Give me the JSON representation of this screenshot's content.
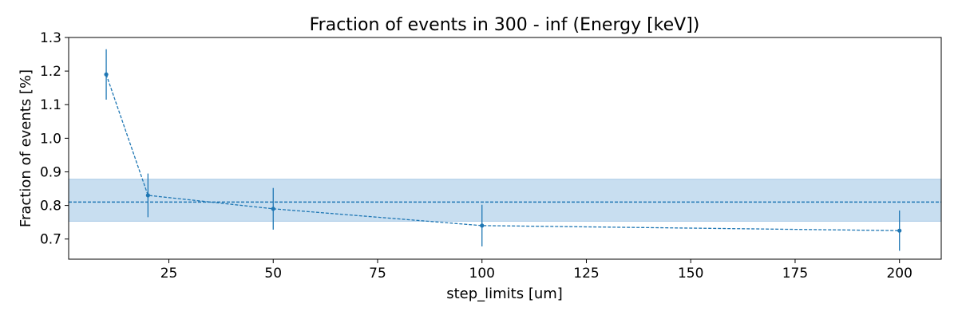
{
  "chart_data": {
    "type": "line",
    "title": "Fraction of events in 300 - inf (Energy [keV])",
    "xlabel": "step_limits [um]",
    "ylabel": "Fraction of events [%]",
    "xlim": [
      1,
      210
    ],
    "ylim": [
      0.64,
      1.3
    ],
    "xticks": [
      25,
      50,
      75,
      100,
      125,
      150,
      175,
      200
    ],
    "yticks": [
      0.7,
      0.8,
      0.9,
      1.0,
      1.1,
      1.2,
      1.3
    ],
    "grid": false,
    "series": [
      {
        "x": [
          10,
          20,
          50,
          100,
          200
        ],
        "y": [
          1.19,
          0.83,
          0.79,
          0.74,
          0.725
        ],
        "yerr": [
          0.075,
          0.065,
          0.062,
          0.062,
          0.06
        ],
        "color": "#1f77b4",
        "linestyle": "dashed",
        "marker": "circle"
      }
    ],
    "reference": {
      "mean": 0.81,
      "band": [
        0.753,
        0.878
      ],
      "line_color": "#1f77b4",
      "band_color": "#c8def0"
    }
  }
}
